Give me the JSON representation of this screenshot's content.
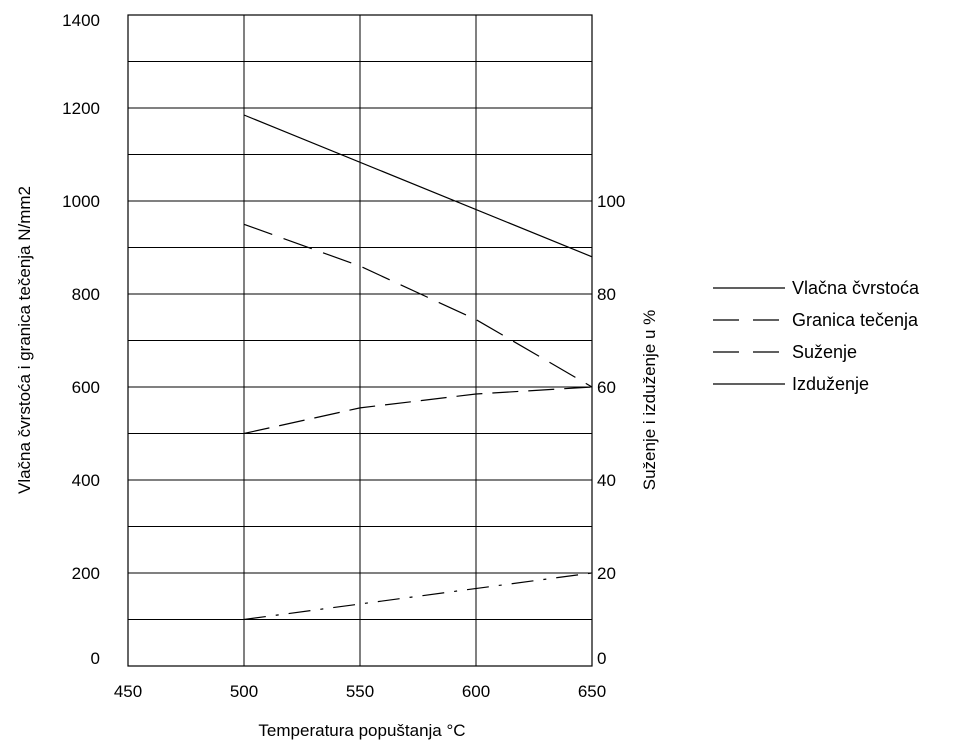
{
  "chart_data": {
    "type": "line",
    "title": "",
    "xlabel": "Temperatura popuštanja °C",
    "ylabel_left": "Vlačna čvrstoća i granica tečenja N/mm2",
    "ylabel_right": "Suženje i izduženje u %",
    "xlim": [
      450,
      650
    ],
    "ylim_left": [
      0,
      1400
    ],
    "ylim_right": [
      0,
      140
    ],
    "x_ticks": [
      "450",
      "500",
      "550",
      "600",
      "650"
    ],
    "y_left_ticks": [
      "0",
      "200",
      "400",
      "600",
      "800",
      "1000",
      "1200",
      "1400"
    ],
    "y_right_ticks": [
      "0",
      "20",
      "40",
      "60",
      "80",
      "100"
    ],
    "grid": true,
    "legend_position": "right",
    "series": [
      {
        "name": "Vlačna čvrstoća",
        "axis": "left",
        "style": "solid",
        "x": [
          500,
          650
        ],
        "y": [
          1185,
          880
        ]
      },
      {
        "name": "Granica tečenja",
        "axis": "left",
        "style": "long-dash",
        "x": [
          500,
          550,
          600,
          650
        ],
        "y": [
          950,
          860,
          745,
          600
        ]
      },
      {
        "name": "Suženje",
        "axis": "right",
        "style": "dash",
        "x": [
          500,
          550,
          600,
          650
        ],
        "y": [
          50,
          55.5,
          58.5,
          60
        ]
      },
      {
        "name": "Izduženje",
        "axis": "right",
        "style": "dash-dot",
        "x": [
          500,
          650
        ],
        "y": [
          10,
          20
        ]
      }
    ]
  }
}
